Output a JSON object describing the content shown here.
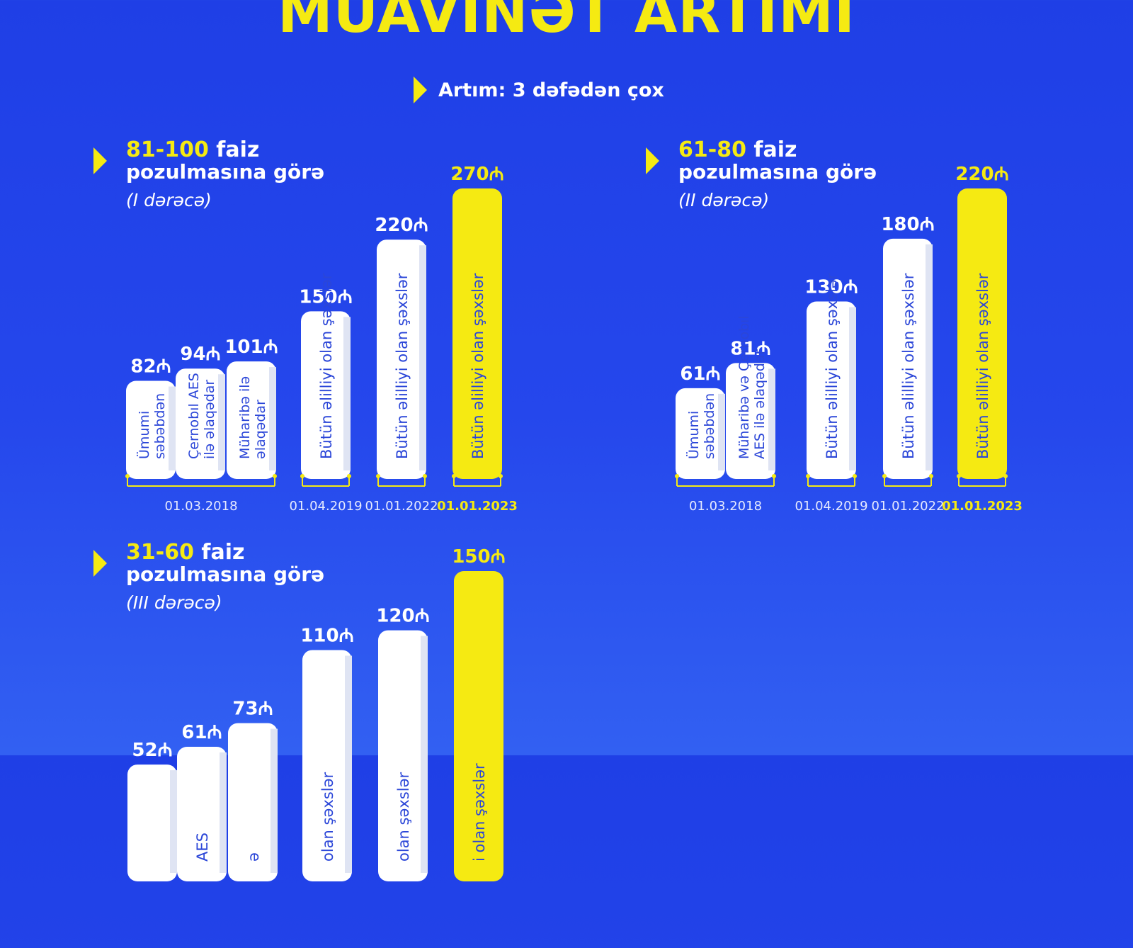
{
  "title": "MÜAVİNƏT ARTIMI",
  "subtitle": "Artım: 3 dəfədən çox",
  "colors": {
    "background": "#2547ec",
    "accent_yellow": "#f5ea12",
    "bar_white": "#ffffff",
    "bar_text": "#2b46d8"
  },
  "currency_symbol": "₼",
  "charts": [
    {
      "range": "81-100",
      "range_suffix": "faiz",
      "line2": "pozulmasına görə",
      "degree": "(I dərəcə)"
    },
    {
      "range": "61-80",
      "range_suffix": "faiz",
      "line2": "pozulmasına görə",
      "degree": "(II dərəcə)"
    },
    {
      "range": "31-60",
      "range_suffix": "faiz",
      "line2": "pozulmasına görə",
      "degree": "(III dərəcə)"
    }
  ],
  "chart_data": [
    {
      "type": "bar",
      "title": "81-100 faiz pozulmasına görə (I dərəcə)",
      "unit": "₼",
      "categories": [
        "Ümumi səbəbdən",
        "Çernobıl AES ilə əlaqədar",
        "Müharibə ilə əlaqədar",
        "Bütün əlilliyi olan şəxslər",
        "Bütün əlilliyi olan şəxslər",
        "Bütün əlilliyi olan şəxslər"
      ],
      "label_lines": [
        [
          "Ümumi",
          "səbəbdən"
        ],
        [
          "Çernobıl AES",
          "ilə əlaqədar"
        ],
        [
          "Müharibə ilə",
          "əlaqədar"
        ],
        [
          "Bütün əlilliyi olan şəxslər"
        ],
        [
          "Bütün əlilliyi olan şəxslər"
        ],
        [
          "Bütün əlilliyi olan şəxslər"
        ]
      ],
      "values": [
        82,
        94,
        101,
        150,
        220,
        270
      ],
      "date_groups": [
        {
          "label": "01.03.2018",
          "bars": [
            0,
            1,
            2
          ],
          "highlight": false
        },
        {
          "label": "01.04.2019",
          "bars": [
            3
          ],
          "highlight": false
        },
        {
          "label": "01.01.2022",
          "bars": [
            4
          ],
          "highlight": false
        },
        {
          "label": "01.01.2023",
          "bars": [
            5
          ],
          "highlight": true
        }
      ],
      "highlight_index": 5
    },
    {
      "type": "bar",
      "title": "61-80 faiz pozulmasına görə (II dərəcə)",
      "unit": "₼",
      "categories": [
        "Ümumi səbəbdən",
        "Müharibə və Çernobıl AES ilə əlaqədar",
        "Bütün əlilliyi olan şəxslər",
        "Bütün əlilliyi olan şəxslər",
        "Bütün əlilliyi olan şəxslər"
      ],
      "label_lines": [
        [
          "Ümumi",
          "səbəbdən"
        ],
        [
          "Müharibə və Çernobıl",
          "AES ilə əlaqədar"
        ],
        [
          "Bütün əlilliyi olan şəxslər"
        ],
        [
          "Bütün əlilliyi olan şəxslər"
        ],
        [
          "Bütün əlilliyi olan şəxslər"
        ]
      ],
      "values": [
        61,
        81,
        130,
        180,
        220
      ],
      "date_groups": [
        {
          "label": "01.03.2018",
          "bars": [
            0,
            1
          ],
          "highlight": false
        },
        {
          "label": "01.04.2019",
          "bars": [
            2
          ],
          "highlight": false
        },
        {
          "label": "01.01.2022",
          "bars": [
            3
          ],
          "highlight": false
        },
        {
          "label": "01.01.2023",
          "bars": [
            4
          ],
          "highlight": true
        }
      ],
      "highlight_index": 4
    },
    {
      "type": "bar",
      "title": "31-60 faiz pozulmasına görə (III dərəcə)",
      "unit": "₼",
      "categories": [
        "",
        "AES",
        "ə",
        "olan şəxslər",
        "olan şəxslər",
        "i olan şəxslər"
      ],
      "label_lines": [
        [
          ""
        ],
        [
          "AES"
        ],
        [
          "ə"
        ],
        [
          "olan şəxslər"
        ],
        [
          "olan şəxslər"
        ],
        [
          "i olan şəxslər"
        ]
      ],
      "values": [
        52,
        61,
        73,
        110,
        120,
        150
      ],
      "date_groups": [],
      "highlight_index": 5
    }
  ]
}
